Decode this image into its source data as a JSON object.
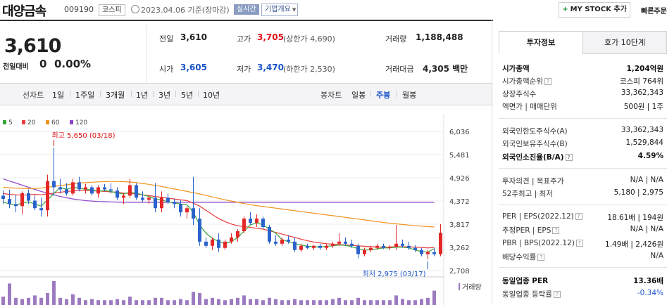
{
  "header": {
    "stock_name": "대양금속",
    "stock_code": "009190",
    "market": "코스피",
    "date_text": "2023.04.06  기준(장마감)",
    "realtime": "실시간",
    "company_info": "기업개요",
    "mystock_btn": "MY STOCK 추가",
    "quick_order": "빠른주문"
  },
  "price": {
    "current": "3,610",
    "change_label": "전일대비",
    "change_value": "0",
    "change_pct": "0.00%"
  },
  "quote": {
    "prev_label": "전일",
    "prev": "3,610",
    "high_label": "고가",
    "high": "3,705",
    "upper_limit": "(상한가 4,690)",
    "volume_label": "거래량",
    "volume": "1,188,488",
    "open_label": "시가",
    "open": "3,605",
    "low_label": "저가",
    "low": "3,470",
    "lower_limit": "(하한가 2,530)",
    "amount_label": "거래대금",
    "amount": "4,305 백만"
  },
  "period_tabs": {
    "line_label": "선차트",
    "items": [
      "1일",
      "1주일",
      "3개월",
      "1년",
      "3년",
      "5년",
      "10년"
    ],
    "candle_label": "봉차트",
    "candle_items": [
      "일봉",
      "주봉",
      "월봉"
    ],
    "selected": "주봉"
  },
  "chart_data": {
    "type": "candlestick",
    "y_ticks": [
      6036,
      5481,
      4926,
      4372,
      3817,
      3262,
      2708
    ],
    "y_tick_labels": [
      "6,036",
      "5,481",
      "4,926",
      "4,372",
      "3,817",
      "3,262",
      "2,708"
    ],
    "legend": [
      {
        "name": "5",
        "color": "#3aa63a"
      },
      {
        "name": "20",
        "color": "#e83b3b"
      },
      {
        "name": "60",
        "color": "#f0921e"
      },
      {
        "name": "120",
        "color": "#8e44c9"
      }
    ],
    "annotation_high": "최고 5,650 (03/18)",
    "annotation_low": "최저 2,975 (03/17)",
    "volume_label": "거래량",
    "up_color": "#e32626",
    "down_color": "#2a62cc",
    "candles": [
      {
        "o": 4500,
        "h": 4620,
        "l": 4300,
        "c": 4420
      },
      {
        "o": 4420,
        "h": 4640,
        "l": 4200,
        "c": 4300
      },
      {
        "o": 4300,
        "h": 4520,
        "l": 4100,
        "c": 4250
      },
      {
        "o": 4250,
        "h": 4600,
        "l": 4050,
        "c": 4560
      },
      {
        "o": 4560,
        "h": 4650,
        "l": 4300,
        "c": 4380
      },
      {
        "o": 4380,
        "h": 4500,
        "l": 4150,
        "c": 4200
      },
      {
        "o": 4200,
        "h": 4450,
        "l": 4000,
        "c": 4150
      },
      {
        "o": 4150,
        "h": 5000,
        "l": 4000,
        "c": 4850
      },
      {
        "o": 4850,
        "h": 5650,
        "l": 4500,
        "c": 4700
      },
      {
        "o": 4700,
        "h": 4900,
        "l": 4550,
        "c": 4650
      },
      {
        "o": 4650,
        "h": 4800,
        "l": 4500,
        "c": 4550
      },
      {
        "o": 4550,
        "h": 4900,
        "l": 4500,
        "c": 4820
      },
      {
        "o": 4820,
        "h": 4950,
        "l": 4600,
        "c": 4650
      },
      {
        "o": 4650,
        "h": 4780,
        "l": 4550,
        "c": 4700
      },
      {
        "o": 4700,
        "h": 4750,
        "l": 4500,
        "c": 4550
      },
      {
        "o": 4550,
        "h": 4750,
        "l": 4450,
        "c": 4700
      },
      {
        "o": 4700,
        "h": 4780,
        "l": 4600,
        "c": 4650
      },
      {
        "o": 4650,
        "h": 4800,
        "l": 4550,
        "c": 4620
      },
      {
        "o": 4620,
        "h": 4700,
        "l": 4400,
        "c": 4450
      },
      {
        "o": 4450,
        "h": 4560,
        "l": 4300,
        "c": 4500
      },
      {
        "o": 4500,
        "h": 4900,
        "l": 4450,
        "c": 4750
      },
      {
        "o": 4750,
        "h": 4800,
        "l": 4400,
        "c": 4450
      },
      {
        "o": 4450,
        "h": 4600,
        "l": 4350,
        "c": 4400
      },
      {
        "o": 4400,
        "h": 4500,
        "l": 4300,
        "c": 4450
      },
      {
        "o": 4450,
        "h": 4800,
        "l": 4100,
        "c": 4200
      },
      {
        "o": 4200,
        "h": 4600,
        "l": 4100,
        "c": 4450
      },
      {
        "o": 4450,
        "h": 4550,
        "l": 4300,
        "c": 4350
      },
      {
        "o": 4350,
        "h": 4420,
        "l": 4200,
        "c": 4300
      },
      {
        "o": 4300,
        "h": 4400,
        "l": 4000,
        "c": 4100
      },
      {
        "o": 4100,
        "h": 4250,
        "l": 3950,
        "c": 4200
      },
      {
        "o": 4200,
        "h": 4950,
        "l": 3800,
        "c": 3950
      },
      {
        "o": 3950,
        "h": 4200,
        "l": 3300,
        "c": 3400
      },
      {
        "o": 3400,
        "h": 3500,
        "l": 3250,
        "c": 3300
      },
      {
        "o": 3300,
        "h": 3500,
        "l": 3200,
        "c": 3450
      },
      {
        "o": 3450,
        "h": 3600,
        "l": 3150,
        "c": 3250
      },
      {
        "o": 3250,
        "h": 3450,
        "l": 3200,
        "c": 3400
      },
      {
        "o": 3400,
        "h": 3600,
        "l": 3350,
        "c": 3500
      },
      {
        "o": 3500,
        "h": 3700,
        "l": 3400,
        "c": 3650
      },
      {
        "o": 3650,
        "h": 4000,
        "l": 3600,
        "c": 3950
      },
      {
        "o": 3950,
        "h": 4100,
        "l": 3800,
        "c": 3850
      },
      {
        "o": 3850,
        "h": 4050,
        "l": 3750,
        "c": 3950
      },
      {
        "o": 3950,
        "h": 4000,
        "l": 3700,
        "c": 3750
      },
      {
        "o": 3750,
        "h": 3800,
        "l": 3350,
        "c": 3400
      },
      {
        "o": 3400,
        "h": 3550,
        "l": 3300,
        "c": 3350
      },
      {
        "o": 3350,
        "h": 3500,
        "l": 3300,
        "c": 3450
      },
      {
        "o": 3450,
        "h": 3550,
        "l": 3350,
        "c": 3400
      },
      {
        "o": 3400,
        "h": 3500,
        "l": 3150,
        "c": 3200
      },
      {
        "o": 3200,
        "h": 3350,
        "l": 3150,
        "c": 3300
      },
      {
        "o": 3300,
        "h": 3350,
        "l": 3220,
        "c": 3250
      },
      {
        "o": 3250,
        "h": 3320,
        "l": 3200,
        "c": 3300
      },
      {
        "o": 3300,
        "h": 3350,
        "l": 3200,
        "c": 3250
      },
      {
        "o": 3250,
        "h": 3350,
        "l": 3200,
        "c": 3300
      },
      {
        "o": 3300,
        "h": 3400,
        "l": 3250,
        "c": 3350
      },
      {
        "o": 3350,
        "h": 3600,
        "l": 3300,
        "c": 3400
      },
      {
        "o": 3400,
        "h": 3500,
        "l": 3300,
        "c": 3350
      },
      {
        "o": 3350,
        "h": 3450,
        "l": 3250,
        "c": 3300
      },
      {
        "o": 3300,
        "h": 3350,
        "l": 3000,
        "c": 3100
      },
      {
        "o": 3100,
        "h": 3250,
        "l": 3050,
        "c": 3200
      },
      {
        "o": 3200,
        "h": 3300,
        "l": 3150,
        "c": 3250
      },
      {
        "o": 3250,
        "h": 3350,
        "l": 3200,
        "c": 3300
      },
      {
        "o": 3300,
        "h": 3350,
        "l": 3220,
        "c": 3250
      },
      {
        "o": 3250,
        "h": 3320,
        "l": 3200,
        "c": 3280
      },
      {
        "o": 3280,
        "h": 3800,
        "l": 3200,
        "c": 3350
      },
      {
        "o": 3350,
        "h": 3450,
        "l": 3250,
        "c": 3300
      },
      {
        "o": 3300,
        "h": 3400,
        "l": 3200,
        "c": 3250
      },
      {
        "o": 3250,
        "h": 3320,
        "l": 3150,
        "c": 3200
      },
      {
        "o": 3200,
        "h": 3250,
        "l": 3050,
        "c": 3100
      },
      {
        "o": 3100,
        "h": 3200,
        "l": 2975,
        "c": 3150
      },
      {
        "o": 3150,
        "h": 3250,
        "l": 3050,
        "c": 3100
      },
      {
        "o": 3100,
        "h": 3820,
        "l": 3050,
        "c": 3610
      }
    ],
    "ma5": [
      4350,
      4300,
      4280,
      4320,
      4350,
      4300,
      4250,
      4400,
      4550,
      4700,
      4650,
      4700,
      4680,
      4650,
      4640,
      4600,
      4620,
      4600,
      4560,
      4540,
      4580,
      4560,
      4520,
      4480,
      4420,
      4400,
      4350,
      4330,
      4300,
      4280,
      4100,
      3800,
      3600,
      3480,
      3400,
      3350,
      3400,
      3500,
      3650,
      3800,
      3850,
      3800,
      3700,
      3600,
      3450,
      3400,
      3350,
      3320,
      3290,
      3280,
      3270,
      3290,
      3300,
      3320,
      3310,
      3280,
      3230,
      3200,
      3200,
      3230,
      3250,
      3250,
      3270,
      3270,
      3250,
      3200,
      3160,
      3150,
      3230
    ],
    "ma20": [
      4550,
      4530,
      4520,
      4510,
      4520,
      4530,
      4520,
      4540,
      4560,
      4580,
      4600,
      4610,
      4620,
      4620,
      4615,
      4610,
      4600,
      4590,
      4580,
      4560,
      4550,
      4540,
      4520,
      4500,
      4480,
      4460,
      4440,
      4420,
      4400,
      4380,
      4320,
      4250,
      4150,
      4050,
      3950,
      3880,
      3820,
      3780,
      3760,
      3740,
      3720,
      3700,
      3660,
      3620,
      3580,
      3540,
      3500,
      3460,
      3420,
      3390,
      3370,
      3350,
      3340,
      3330,
      3320,
      3310,
      3300,
      3290,
      3280,
      3270,
      3270,
      3270,
      3280,
      3280,
      3275,
      3270,
      3260,
      3250,
      3260
    ],
    "ma60": [
      4700,
      4690,
      4680,
      4675,
      4670,
      4670,
      4680,
      4700,
      4720,
      4740,
      4760,
      4780,
      4800,
      4810,
      4820,
      4830,
      4835,
      4840,
      4840,
      4835,
      4825,
      4810,
      4790,
      4770,
      4745,
      4720,
      4690,
      4660,
      4630,
      4600,
      4570,
      4540,
      4505,
      4470,
      4435,
      4400,
      4370,
      4340,
      4310,
      4285,
      4260,
      4240,
      4220,
      4200,
      4180,
      4160,
      4140,
      4120,
      4100,
      4080,
      4060,
      4040,
      4020,
      4000,
      3980,
      3960,
      3940,
      3920,
      3900,
      3880,
      3860,
      3840,
      3825,
      3810,
      3795,
      3780,
      3770,
      3760,
      3750
    ],
    "ma120": [
      4900,
      4850,
      4800,
      4750,
      4700,
      4650,
      4600,
      4560,
      4520,
      4480,
      4450,
      4420,
      4400,
      4380,
      4370,
      4360,
      4355,
      4350,
      4345,
      4340,
      4340,
      4340,
      4340,
      4340,
      4340,
      4340,
      4340,
      4340,
      4340,
      4340,
      4340,
      4340,
      4340,
      4340,
      4340,
      4340,
      4340,
      4340,
      4340,
      4340,
      4340,
      4340,
      4340,
      4340,
      4340,
      4340,
      4340,
      4340,
      4340,
      4340,
      4340,
      4340,
      4340,
      4340,
      4340,
      4340,
      4340,
      4340,
      4340,
      4340,
      4340,
      4340,
      4340,
      4340,
      4340,
      4340,
      4340,
      4340,
      4340
    ],
    "volumes": [
      0.35,
      0.9,
      0.3,
      0.25,
      0.3,
      0.4,
      0.3,
      0.5,
      1.0,
      0.3,
      0.25,
      0.45,
      0.3,
      0.2,
      0.25,
      0.2,
      0.2,
      0.2,
      0.25,
      0.2,
      0.35,
      0.2,
      0.2,
      0.2,
      0.3,
      0.3,
      0.2,
      0.2,
      0.25,
      0.2,
      0.55,
      0.5,
      0.25,
      0.3,
      0.25,
      0.2,
      0.25,
      0.3,
      0.4,
      0.25,
      0.25,
      0.2,
      0.3,
      0.25,
      0.2,
      0.2,
      0.25,
      0.2,
      0.2,
      0.2,
      0.2,
      0.2,
      0.25,
      0.3,
      0.2,
      0.2,
      0.3,
      0.2,
      0.2,
      0.2,
      0.2,
      0.2,
      0.4,
      0.25,
      0.2,
      0.2,
      0.25,
      0.3,
      0.6
    ]
  },
  "right_panel": {
    "tab1": "투자정보",
    "tab2": "호가 10단계",
    "rows": [
      {
        "label": "시가총액",
        "value": "1,204억원",
        "bold": true
      },
      {
        "label": "시가총액순위",
        "value": "코스피 764위",
        "help": true
      },
      {
        "label": "상장주식수",
        "value": "33,362,343"
      },
      {
        "label": "액면가 | 매매단위",
        "value": "500원 | 1주"
      },
      {
        "label": "외국인한도주식수(A)",
        "value": "33,362,343"
      },
      {
        "label": "외국인보유주식수(B)",
        "value": "1,529,844"
      },
      {
        "label": "외국인소진율(B/A)",
        "value": "4.59%",
        "bold": true,
        "help": true
      },
      {
        "label": "투자의견 | 목표주가",
        "value": "N/A | N/A"
      },
      {
        "label": "52주최고 | 최저",
        "value": "5,180 | 2,975"
      },
      {
        "label": "PER | EPS(2022.12)",
        "value": "18.61배 | 194원",
        "help": true
      },
      {
        "label": "추정PER | EPS",
        "value": "N/A | N/A",
        "help": true
      },
      {
        "label": "PBR | BPS(2022.12)",
        "value": "1.49배 | 2,426원",
        "help": true
      },
      {
        "label": "배당수익률",
        "value": "N/A",
        "help": true
      },
      {
        "label": "동일업종 PER",
        "value": "13.36배",
        "bold": true
      },
      {
        "label": "동일업종 등락률",
        "value": "-0.34%",
        "help": true,
        "color": "#1a53c8"
      }
    ]
  }
}
